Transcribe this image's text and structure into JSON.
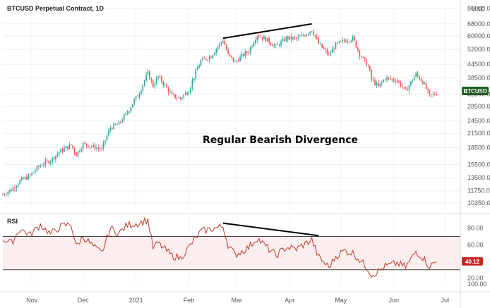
{
  "chart_data": [
    {
      "type": "candlestick",
      "title": "BTCUSD Perpetual Contract, 1D",
      "currency_label": "USD",
      "annotation": "Regular Bearish Divergence",
      "symbol_badge": "BTCUSD",
      "y_scale": "log",
      "ylim": [
        9600,
        80000
      ],
      "yticks": [
        {
          "v": 80000,
          "t": "80000.0"
        },
        {
          "v": 68000,
          "t": "68000.0"
        },
        {
          "v": 60000,
          "t": "60000.0"
        },
        {
          "v": 52000,
          "t": "52000.0"
        },
        {
          "v": 44500,
          "t": "44500.0"
        },
        {
          "v": 38500,
          "t": "38500.0"
        },
        {
          "v": 32500,
          "t": "32500.0"
        },
        {
          "v": 28500,
          "t": "28500.0"
        },
        {
          "v": 24500,
          "t": "24500.0"
        },
        {
          "v": 21500,
          "t": "21500.0"
        },
        {
          "v": 18500,
          "t": "18500.0"
        },
        {
          "v": 15500,
          "t": "15500.0"
        },
        {
          "v": 13500,
          "t": "13500.0"
        },
        {
          "v": 11750,
          "t": "11750.0"
        },
        {
          "v": 10350,
          "t": "10350.0"
        }
      ],
      "x_months": [
        {
          "label": "Nov",
          "date": "2020-11-01"
        },
        {
          "label": "Dec",
          "date": "2020-12-01"
        },
        {
          "label": "2021",
          "date": "2021-01-01"
        },
        {
          "label": "Feb",
          "date": "2021-02-01"
        },
        {
          "label": "Mar",
          "date": "2021-03-01"
        },
        {
          "label": "Apr",
          "date": "2021-04-01"
        },
        {
          "label": "May",
          "date": "2021-05-01"
        },
        {
          "label": "Jun",
          "date": "2021-06-01"
        },
        {
          "label": "Jul",
          "date": "2021-07-01"
        }
      ],
      "x_start": "2020-10-15",
      "x_end": "2021-07-10",
      "last_value": 33600,
      "price_path": [
        [
          "2020-10-15",
          11300
        ],
        [
          "2020-10-20",
          11900
        ],
        [
          "2020-10-25",
          13000
        ],
        [
          "2020-10-31",
          13800
        ],
        [
          "2020-11-06",
          15400
        ],
        [
          "2020-11-12",
          16200
        ],
        [
          "2020-11-18",
          17900
        ],
        [
          "2020-11-24",
          19000
        ],
        [
          "2020-11-27",
          17200
        ],
        [
          "2020-12-01",
          19200
        ],
        [
          "2020-12-08",
          18600
        ],
        [
          "2020-12-12",
          18200
        ],
        [
          "2020-12-17",
          22800
        ],
        [
          "2020-12-22",
          23800
        ],
        [
          "2020-12-27",
          26800
        ],
        [
          "2021-01-03",
          33000
        ],
        [
          "2021-01-08",
          40500
        ],
        [
          "2021-01-11",
          35500
        ],
        [
          "2021-01-14",
          39000
        ],
        [
          "2021-01-22",
          32000
        ],
        [
          "2021-01-27",
          31000
        ],
        [
          "2021-02-01",
          33800
        ],
        [
          "2021-02-08",
          46000
        ],
        [
          "2021-02-14",
          48500
        ],
        [
          "2021-02-21",
          57500
        ],
        [
          "2021-02-24",
          49000
        ],
        [
          "2021-02-28",
          45500
        ],
        [
          "2021-03-04",
          48500
        ],
        [
          "2021-03-08",
          51000
        ],
        [
          "2021-03-13",
          60500
        ],
        [
          "2021-03-18",
          58000
        ],
        [
          "2021-03-24",
          53500
        ],
        [
          "2021-03-30",
          58600
        ],
        [
          "2021-04-05",
          58200
        ],
        [
          "2021-04-10",
          60800
        ],
        [
          "2021-04-14",
          64000
        ],
        [
          "2021-04-18",
          55000
        ],
        [
          "2021-04-24",
          49000
        ],
        [
          "2021-04-28",
          54500
        ],
        [
          "2021-05-03",
          57000
        ],
        [
          "2021-05-08",
          58500
        ],
        [
          "2021-05-12",
          49500
        ],
        [
          "2021-05-17",
          43500
        ],
        [
          "2021-05-19",
          38000
        ],
        [
          "2021-05-23",
          35000
        ],
        [
          "2021-05-27",
          38500
        ],
        [
          "2021-06-03",
          37500
        ],
        [
          "2021-06-08",
          33500
        ],
        [
          "2021-06-14",
          40000
        ],
        [
          "2021-06-18",
          37000
        ],
        [
          "2021-06-22",
          31800
        ],
        [
          "2021-06-26",
          32800
        ]
      ],
      "trendline": {
        "from": [
          "2021-02-21",
          58500
        ],
        "to": [
          "2021-04-14",
          68000
        ]
      }
    },
    {
      "type": "line",
      "title": "RSI",
      "ylim": [
        12,
        95
      ],
      "yticks": [
        {
          "v": 80,
          "t": "80.00"
        },
        {
          "v": 60,
          "t": "60.00"
        },
        {
          "v": 20,
          "t": "20.00"
        }
      ],
      "lower_axis_label": "100.00",
      "upper_band": 70,
      "lower_band": 30,
      "line_color": "#c0392b",
      "band_fill": "#fbeeee",
      "last_value_label": "40.12",
      "last_value": 40.12,
      "rsi_path": [
        [
          "2020-10-15",
          67
        ],
        [
          "2020-10-20",
          62
        ],
        [
          "2020-10-25",
          79
        ],
        [
          "2020-10-31",
          72
        ],
        [
          "2020-11-06",
          84
        ],
        [
          "2020-11-12",
          73
        ],
        [
          "2020-11-18",
          82
        ],
        [
          "2020-11-24",
          85
        ],
        [
          "2020-11-27",
          58
        ],
        [
          "2020-12-01",
          70
        ],
        [
          "2020-12-08",
          56
        ],
        [
          "2020-12-12",
          50
        ],
        [
          "2020-12-17",
          80
        ],
        [
          "2020-12-22",
          74
        ],
        [
          "2020-12-27",
          84
        ],
        [
          "2021-01-03",
          86
        ],
        [
          "2021-01-08",
          90
        ],
        [
          "2021-01-11",
          56
        ],
        [
          "2021-01-14",
          62
        ],
        [
          "2021-01-22",
          47
        ],
        [
          "2021-01-27",
          44
        ],
        [
          "2021-02-01",
          57
        ],
        [
          "2021-02-08",
          76
        ],
        [
          "2021-02-14",
          79
        ],
        [
          "2021-02-21",
          82
        ],
        [
          "2021-02-24",
          60
        ],
        [
          "2021-02-28",
          48
        ],
        [
          "2021-03-04",
          52
        ],
        [
          "2021-03-08",
          57
        ],
        [
          "2021-03-13",
          68
        ],
        [
          "2021-03-18",
          58
        ],
        [
          "2021-03-24",
          47
        ],
        [
          "2021-03-30",
          57
        ],
        [
          "2021-04-05",
          55
        ],
        [
          "2021-04-10",
          61
        ],
        [
          "2021-04-14",
          66
        ],
        [
          "2021-04-18",
          45
        ],
        [
          "2021-04-24",
          33
        ],
        [
          "2021-04-28",
          46
        ],
        [
          "2021-05-03",
          53
        ],
        [
          "2021-05-08",
          50
        ],
        [
          "2021-05-12",
          42
        ],
        [
          "2021-05-17",
          31
        ],
        [
          "2021-05-19",
          24
        ],
        [
          "2021-05-23",
          28
        ],
        [
          "2021-05-27",
          34
        ],
        [
          "2021-06-03",
          38
        ],
        [
          "2021-06-08",
          33
        ],
        [
          "2021-06-14",
          52
        ],
        [
          "2021-06-18",
          45
        ],
        [
          "2021-06-22",
          34
        ],
        [
          "2021-06-26",
          40
        ]
      ],
      "trendline": {
        "from": [
          "2021-02-21",
          86
        ],
        "to": [
          "2021-04-18",
          71
        ]
      }
    }
  ]
}
